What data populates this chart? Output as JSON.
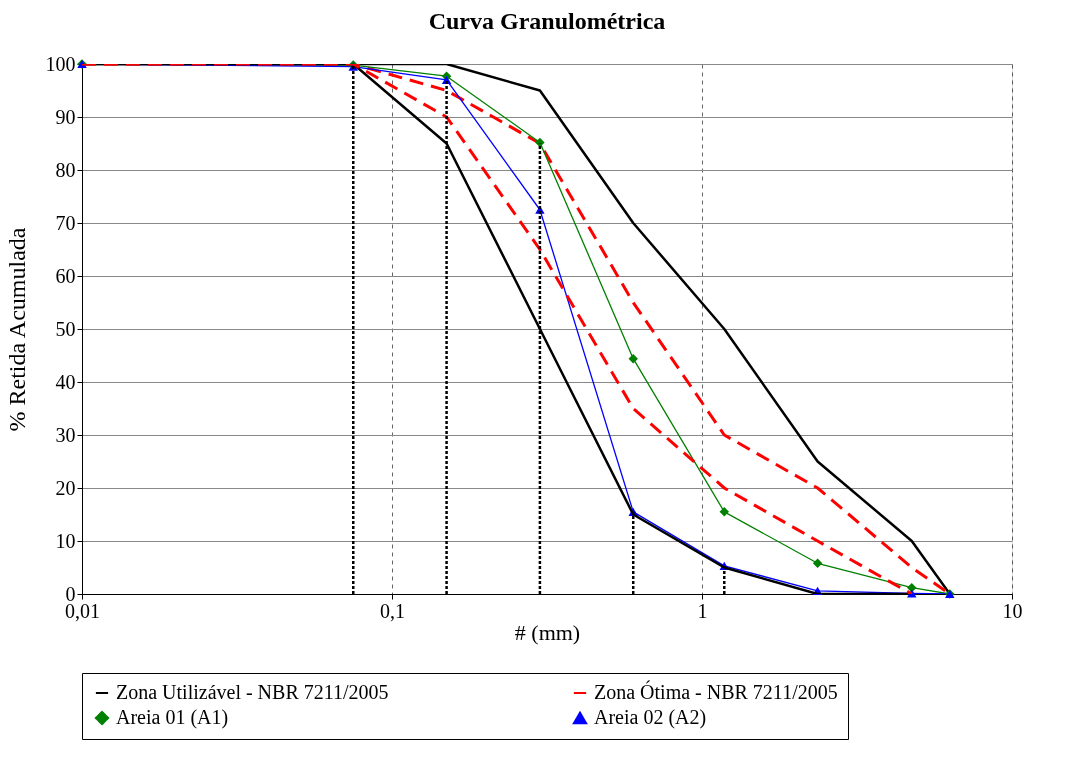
{
  "chart_data": {
    "type": "line",
    "title": "Curva Granulométrica",
    "xlabel": "# (mm)",
    "ylabel": "% Retida Acumulada",
    "log": "x",
    "xlim": [
      0.01,
      10
    ],
    "xticks": [
      {
        "value": 0.01,
        "label": "0,01"
      },
      {
        "value": 0.1,
        "label": "0,1"
      },
      1,
      10
    ],
    "ylim": [
      0,
      100
    ],
    "yticks": [
      0,
      10,
      20,
      30,
      40,
      50,
      60,
      70,
      80,
      90,
      100
    ],
    "grid": true,
    "legend": "bottom",
    "series": [
      {
        "name": "Zona Utilizável - NBR 7211/2005",
        "color": "#000000",
        "line_style": "solid",
        "marker": "none",
        "x": [
          0.01,
          0.075,
          0.15,
          0.3,
          0.6,
          1.18,
          2.36,
          4.75,
          6.3
        ],
        "values": [
          100,
          100,
          100,
          95,
          70,
          50,
          25,
          10,
          0
        ]
      },
      {
        "name": "Zona Ótima - NBR 7211/2005",
        "color": "#ff0000",
        "line_style": "dashed",
        "marker": "none",
        "x": [
          0.01,
          0.075,
          0.15,
          0.3,
          0.6,
          1.18,
          2.36,
          4.75,
          6.3
        ],
        "values": [
          100,
          100,
          95,
          85,
          55,
          30,
          20,
          5,
          0
        ]
      },
      {
        "name": "Areia 01 (A1)",
        "color": "#008000",
        "line_style": "solid",
        "marker": "diamond",
        "x": [
          0.01,
          0.075,
          0.15,
          0.3,
          0.6,
          1.18,
          2.36,
          4.75,
          6.3
        ],
        "values": [
          100,
          99.8,
          97.7,
          85.2,
          44.4,
          15.5,
          5.8,
          1.2,
          0
        ]
      },
      {
        "name": "Areia 02 (A2)",
        "color": "#0000ff",
        "line_style": "solid",
        "marker": "triangle",
        "x": [
          0.01,
          0.075,
          0.15,
          0.3,
          0.6,
          1.18,
          2.36,
          4.75,
          6.3
        ],
        "values": [
          100,
          99.5,
          97,
          72.5,
          15.5,
          5.3,
          0.6,
          0.1,
          0
        ]
      },
      {
        "color": "#000000",
        "line_style": "solid",
        "marker": "none",
        "x": [
          0.01,
          0.075,
          0.15,
          0.3,
          0.6,
          1.18,
          2.36,
          4.75
        ],
        "values": [
          100,
          100,
          85,
          50,
          15,
          5,
          0,
          0
        ]
      },
      {
        "color": "#ff0000",
        "line_style": "dashed",
        "marker": "none",
        "x": [
          0.01,
          0.075,
          0.15,
          0.3,
          0.6,
          1.18,
          2.36,
          4.75
        ],
        "values": [
          100,
          100,
          90,
          65,
          35,
          20,
          10,
          0
        ]
      },
      {
        "color": "#000000",
        "line_style": "dotted",
        "marker": "none",
        "x": [
          0.075,
          0.075
        ],
        "values": [
          0,
          100
        ]
      },
      {
        "color": "#000000",
        "line_style": "dotted",
        "marker": "none",
        "x": [
          0.15,
          0.15
        ],
        "values": [
          0,
          97
        ]
      },
      {
        "color": "#000000",
        "line_style": "dotted",
        "marker": "none",
        "x": [
          0.3,
          0.3
        ],
        "values": [
          0,
          85
        ]
      },
      {
        "color": "#000000",
        "line_style": "dotted",
        "marker": "none",
        "x": [
          0.6,
          0.6
        ],
        "values": [
          0,
          15.5
        ]
      },
      {
        "color": "#000000",
        "line_style": "dotted",
        "marker": "none",
        "x": [
          1.18,
          1.18
        ],
        "values": [
          0,
          5.3
        ]
      }
    ]
  }
}
